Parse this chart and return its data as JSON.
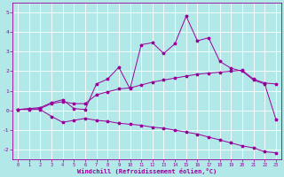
{
  "xlabel": "Windchill (Refroidissement éolien,°C)",
  "bg_color": "#b2e8e8",
  "line_color": "#990099",
  "grid_color": "#ffffff",
  "xlim": [
    -0.5,
    23.5
  ],
  "ylim": [
    -2.5,
    5.5
  ],
  "yticks": [
    -2,
    -1,
    0,
    1,
    2,
    3,
    4,
    5
  ],
  "xticks": [
    0,
    1,
    2,
    3,
    4,
    5,
    6,
    7,
    8,
    9,
    10,
    11,
    12,
    13,
    14,
    15,
    16,
    17,
    18,
    19,
    20,
    21,
    22,
    23
  ],
  "line1_x": [
    0,
    1,
    2,
    3,
    4,
    5,
    6,
    7,
    8,
    9,
    10,
    11,
    12,
    13,
    14,
    15,
    16,
    17,
    18,
    19,
    20,
    21,
    22,
    23
  ],
  "line1_y": [
    0.05,
    0.1,
    0.15,
    0.4,
    0.55,
    0.1,
    0.05,
    1.35,
    1.6,
    2.2,
    1.1,
    3.35,
    3.45,
    2.9,
    3.4,
    4.8,
    3.55,
    3.7,
    2.5,
    2.15,
    2.0,
    1.55,
    1.35,
    -0.45
  ],
  "line2_x": [
    0,
    1,
    2,
    3,
    4,
    5,
    6,
    7,
    8,
    9,
    10,
    11,
    12,
    13,
    14,
    15,
    16,
    17,
    18,
    19,
    20,
    21,
    22,
    23
  ],
  "line2_y": [
    0.05,
    0.08,
    0.1,
    0.35,
    0.45,
    0.35,
    0.35,
    0.8,
    0.95,
    1.1,
    1.15,
    1.3,
    1.45,
    1.55,
    1.65,
    1.75,
    1.85,
    1.9,
    1.95,
    2.0,
    2.05,
    1.6,
    1.4,
    1.35
  ],
  "line3_x": [
    0,
    1,
    2,
    3,
    4,
    5,
    6,
    7,
    8,
    9,
    10,
    11,
    12,
    13,
    14,
    15,
    16,
    17,
    18,
    19,
    20,
    21,
    22,
    23
  ],
  "line3_y": [
    0.05,
    0.05,
    0.05,
    -0.3,
    -0.6,
    -0.5,
    -0.4,
    -0.5,
    -0.55,
    -0.65,
    -0.7,
    -0.75,
    -0.85,
    -0.9,
    -1.0,
    -1.1,
    -1.2,
    -1.35,
    -1.5,
    -1.65,
    -1.8,
    -1.9,
    -2.1,
    -2.15
  ]
}
